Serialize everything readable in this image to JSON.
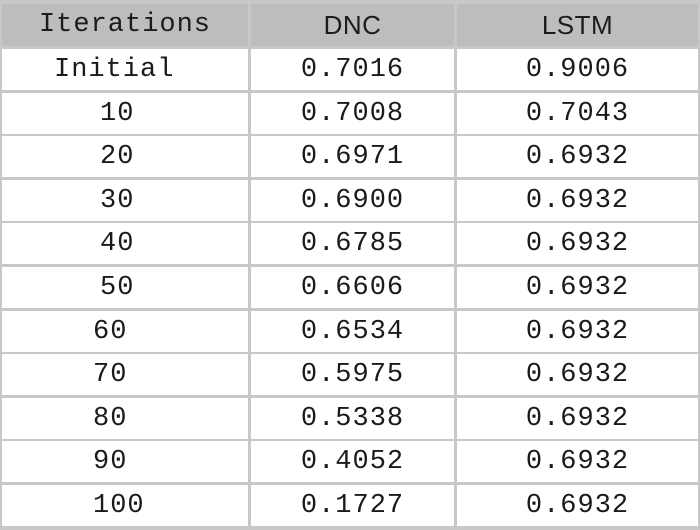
{
  "chart_data": {
    "type": "table",
    "columns": [
      "Iterations",
      "DNC",
      "LSTM"
    ],
    "rows": [
      [
        "Initial",
        "0.7016",
        "0.9006"
      ],
      [
        "10",
        "0.7008",
        "0.7043"
      ],
      [
        "20",
        "0.6971",
        "0.6932"
      ],
      [
        "30",
        "0.6900",
        "0.6932"
      ],
      [
        "40",
        "0.6785",
        "0.6932"
      ],
      [
        "50",
        "0.6606",
        "0.6932"
      ],
      [
        "60",
        "0.6534",
        "0.6932"
      ],
      [
        "70",
        "0.5975",
        "0.6932"
      ],
      [
        "80",
        "0.5338",
        "0.6932"
      ],
      [
        "90",
        "0.4052",
        "0.6932"
      ],
      [
        "100",
        "0.1727",
        "0.6932"
      ]
    ]
  },
  "colors": {
    "header_bg": "#bdbdbd",
    "grid": "#c8c8c8",
    "body_bg": "#ffffff",
    "text": "#1a1a1a"
  }
}
